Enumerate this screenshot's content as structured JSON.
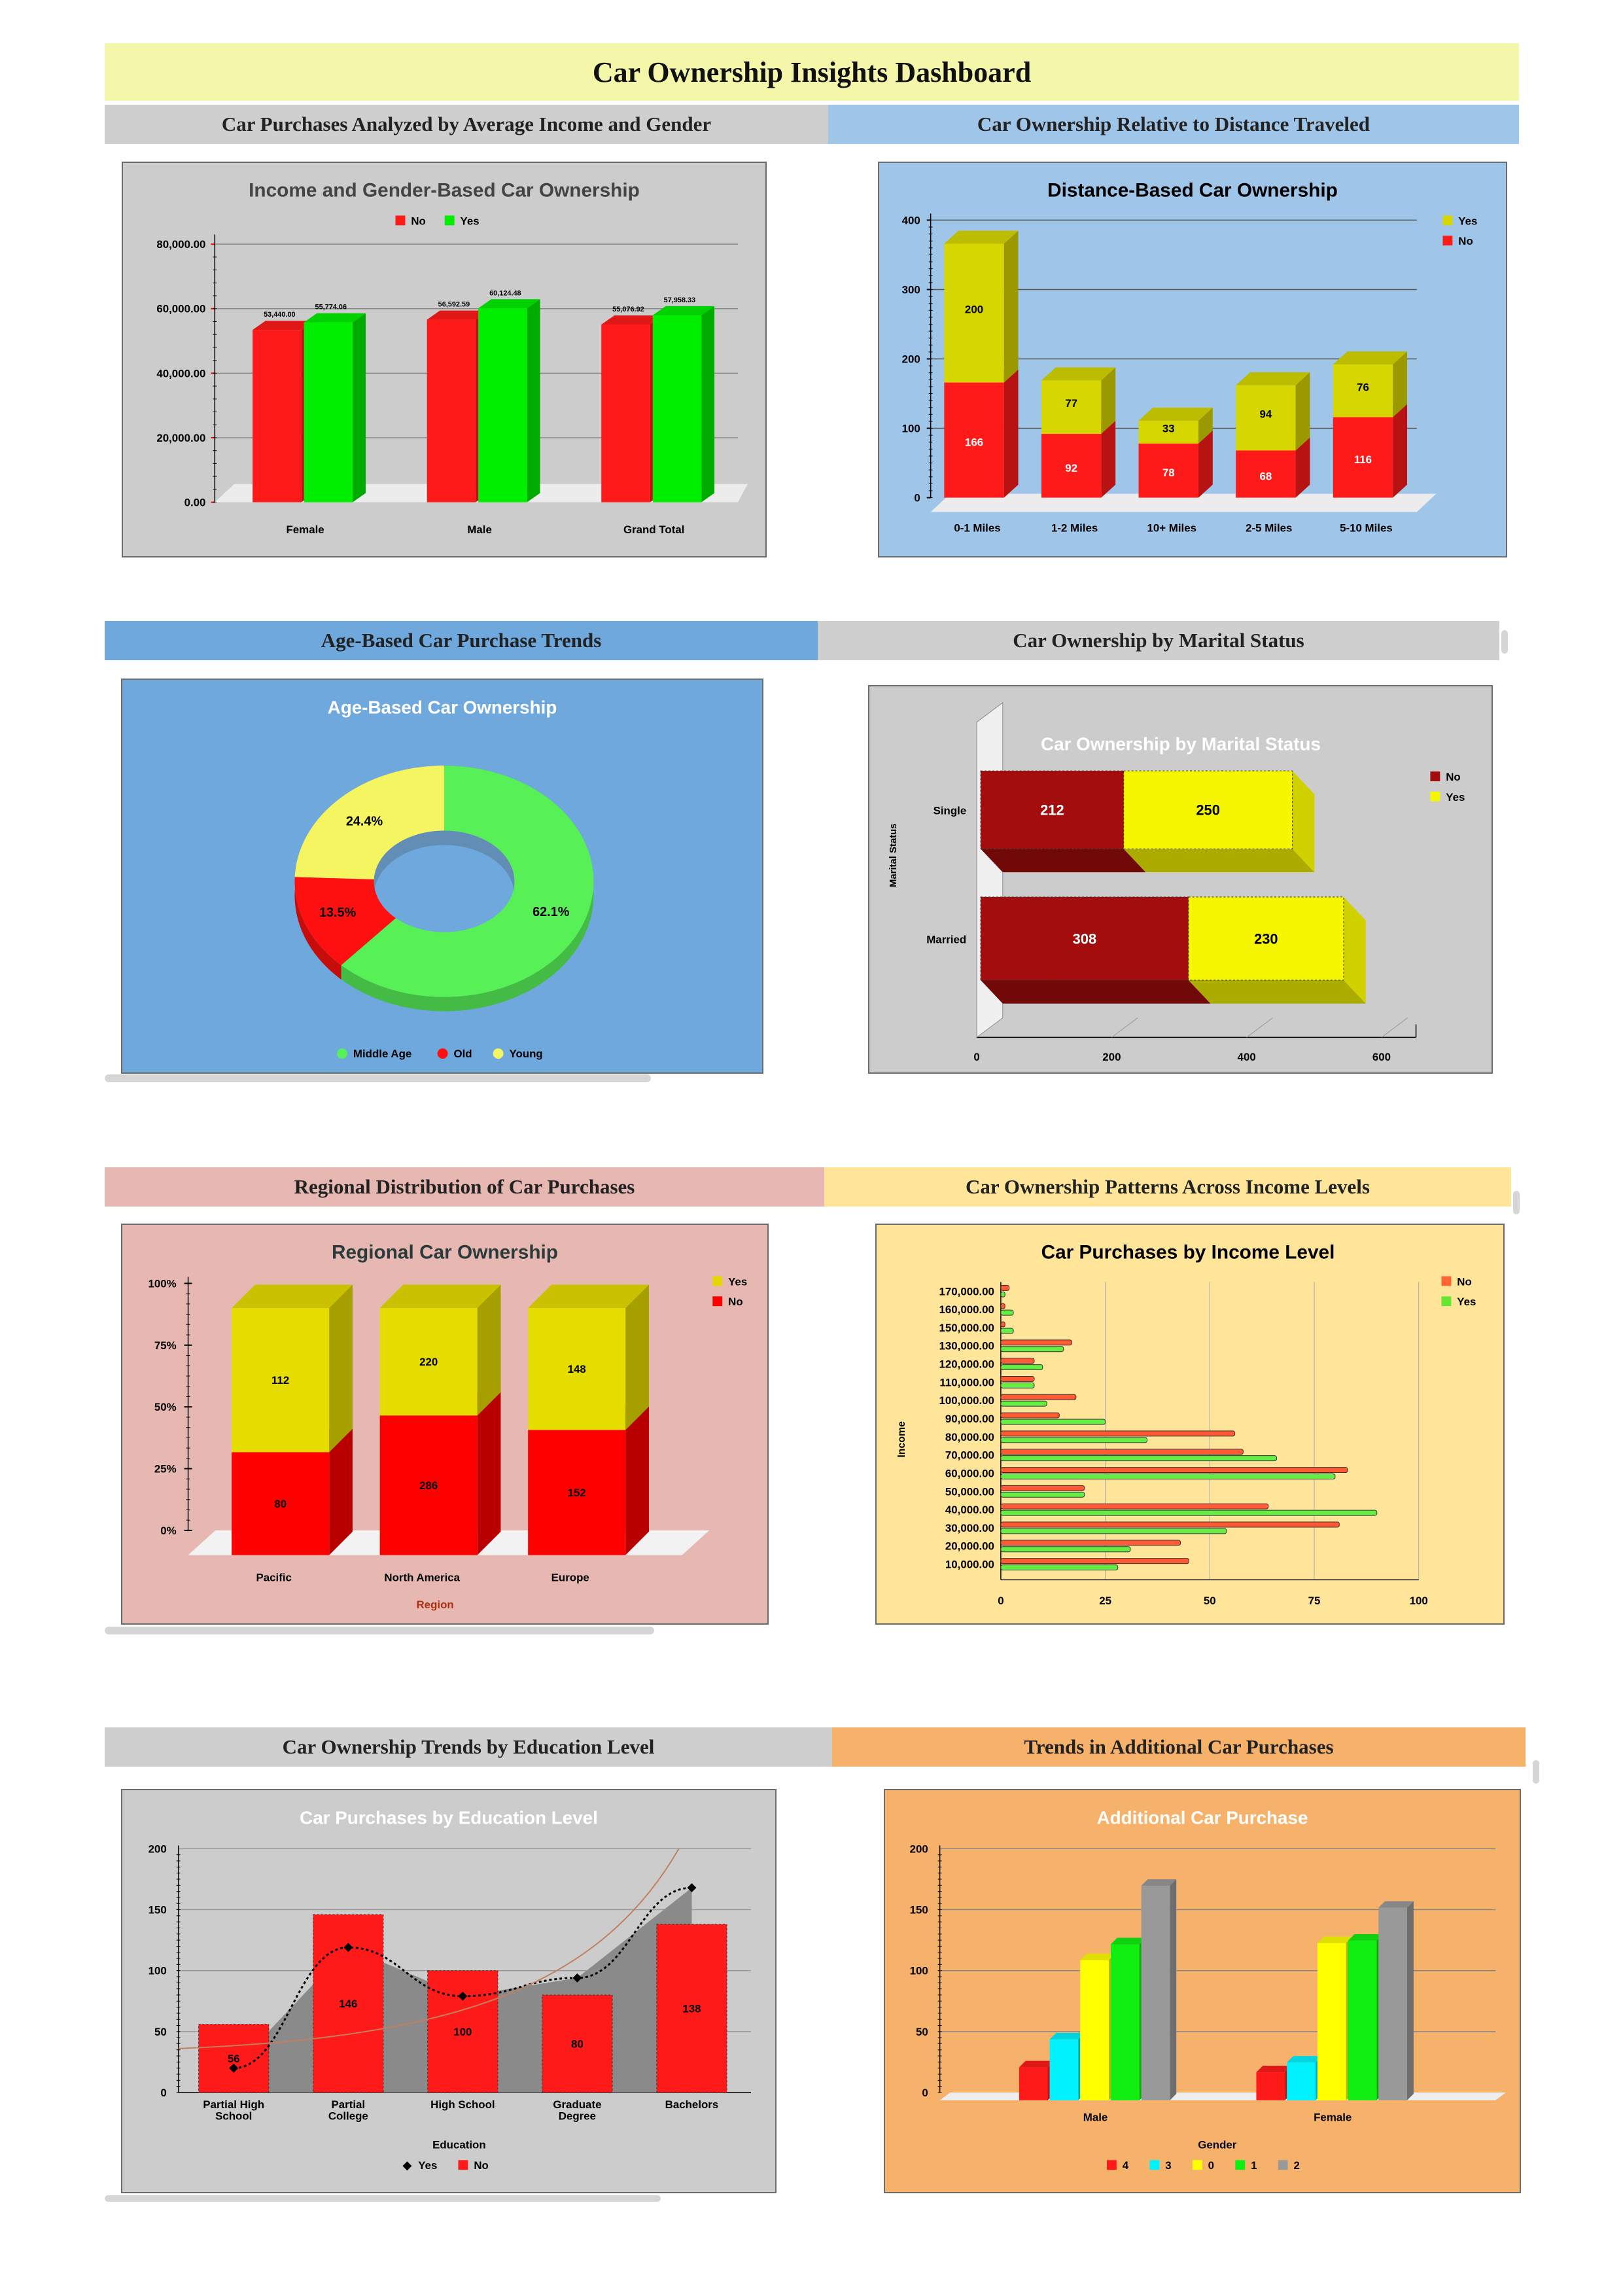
{
  "dashboard_title": "Car Ownership Insights Dashboard",
  "section_headers": {
    "income_gender": "Car Purchases Analyzed by Average Income and Gender",
    "distance": "Car Ownership Relative to Distance Traveled",
    "age": "Age-Based Car Purchase Trends",
    "marital": "Car Ownership by Marital Status",
    "region": "Regional Distribution of Car Purchases",
    "income_levels": "Car Ownership Patterns Across Income Levels",
    "education": "Car Ownership Trends by Education Level",
    "additional": "Trends in Additional Car Purchases"
  },
  "colors": {
    "no_red": "#ff1a1a",
    "yes_green": "#00ee00",
    "yes_yellow": "#d6d600",
    "bright_yellow": "#f6f600",
    "dark_red": "#a30d0d",
    "gray": "#999999",
    "cyan": "#00f2ff"
  },
  "chart_data": [
    {
      "id": "income_gender",
      "type": "bar",
      "title": "Income and Gender-Based Car Ownership",
      "categories": [
        "Female",
        "Male",
        "Grand Total"
      ],
      "series": [
        {
          "name": "No",
          "values": [
            53440.0,
            56592.59,
            55076.92
          ],
          "labels": [
            "53,440.00",
            "56,592.59",
            "55,076.92"
          ]
        },
        {
          "name": "Yes",
          "values": [
            55774.06,
            60124.48,
            57958.33
          ],
          "labels": [
            "55,774.06",
            "60,124.48",
            "57,958.33"
          ]
        }
      ],
      "ylim": [
        0,
        80000
      ],
      "yticks": [
        "0.00",
        "20,000.00",
        "40,000.00",
        "60,000.00",
        "80,000.00"
      ],
      "legend": "top"
    },
    {
      "id": "distance",
      "type": "bar",
      "stacked": true,
      "title": "Distance-Based Car Ownership",
      "categories": [
        "0-1 Miles",
        "1-2 Miles",
        "10+ Miles",
        "2-5 Miles",
        "5-10 Miles"
      ],
      "series": [
        {
          "name": "No",
          "values": [
            166,
            92,
            78,
            68,
            116
          ]
        },
        {
          "name": "Yes",
          "values": [
            200,
            77,
            33,
            94,
            76
          ]
        }
      ],
      "ylim": [
        0,
        400
      ],
      "yticks": [
        "0",
        "100",
        "200",
        "300",
        "400"
      ],
      "legend": "top-right",
      "legend_order": [
        "Yes",
        "No"
      ]
    },
    {
      "id": "age",
      "type": "pie",
      "donut": true,
      "title": "Age-Based Car Ownership",
      "series": [
        {
          "name": "Middle Age",
          "value": 62.1,
          "label": "62.1%"
        },
        {
          "name": "Old",
          "value": 13.5,
          "label": "13.5%"
        },
        {
          "name": "Young",
          "value": 24.4,
          "label": "24.4%"
        }
      ],
      "legend": "bottom"
    },
    {
      "id": "marital",
      "type": "bar",
      "horizontal": true,
      "stacked": true,
      "title": "Car Ownership by Marital Status",
      "categories": [
        "Single",
        "Married"
      ],
      "series": [
        {
          "name": "No",
          "values": [
            212,
            308
          ]
        },
        {
          "name": "Yes",
          "values": [
            250,
            230
          ]
        }
      ],
      "xlim": [
        0,
        600
      ],
      "xticks": [
        "0",
        "200",
        "400",
        "600"
      ],
      "ylabel": "Marital Status",
      "legend": "top-right"
    },
    {
      "id": "region",
      "type": "bar",
      "stacked": true,
      "percent": true,
      "title": "Regional Car Ownership",
      "categories": [
        "Pacific",
        "North America",
        "Europe"
      ],
      "series": [
        {
          "name": "No",
          "values": [
            80,
            286,
            152
          ]
        },
        {
          "name": "Yes",
          "values": [
            112,
            220,
            148
          ]
        }
      ],
      "yticks": [
        "0%",
        "25%",
        "50%",
        "75%",
        "100%"
      ],
      "xlabel": "Region",
      "legend": "top-right",
      "legend_order": [
        "Yes",
        "No"
      ]
    },
    {
      "id": "income_levels",
      "type": "bar",
      "horizontal": true,
      "title": "Car Purchases by Income Level",
      "categories": [
        "10,000.00",
        "20,000.00",
        "30,000.00",
        "40,000.00",
        "50,000.00",
        "60,000.00",
        "70,000.00",
        "80,000.00",
        "90,000.00",
        "100,000.00",
        "110,000.00",
        "120,000.00",
        "130,000.00",
        "150,000.00",
        "160,000.00",
        "170,000.00"
      ],
      "series": [
        {
          "name": "No",
          "values": [
            45,
            43,
            81,
            64,
            20,
            83,
            58,
            56,
            14,
            18,
            8,
            8,
            17,
            1,
            1,
            2
          ]
        },
        {
          "name": "Yes",
          "values": [
            28,
            31,
            54,
            90,
            20,
            80,
            66,
            35,
            25,
            11,
            8,
            10,
            15,
            3,
            3,
            1
          ]
        }
      ],
      "xlim": [
        0,
        100
      ],
      "xticks": [
        "0",
        "25",
        "50",
        "75",
        "100"
      ],
      "ylabel": "Income",
      "legend": "top-right"
    },
    {
      "id": "education",
      "type": "bar",
      "title": "Car Purchases by Education Level",
      "categories": [
        "Partial High School",
        "Partial College",
        "High School",
        "Graduate Degree",
        "Bachelors"
      ],
      "series": [
        {
          "name": "No",
          "values": [
            56,
            146,
            100,
            80,
            138
          ]
        },
        {
          "name": "Yes",
          "type": "line",
          "values": [
            20,
            119,
            79,
            94,
            168
          ]
        }
      ],
      "ylim": [
        0,
        200
      ],
      "yticks": [
        "0",
        "50",
        "100",
        "150",
        "200"
      ],
      "xlabel": "Education",
      "legend": "bottom"
    },
    {
      "id": "additional",
      "type": "bar",
      "title": "Additional Car Purchase",
      "categories": [
        "Male",
        "Female"
      ],
      "series": [
        {
          "name": "4",
          "values": [
            27,
            23
          ]
        },
        {
          "name": "3",
          "values": [
            50,
            31
          ]
        },
        {
          "name": "0",
          "values": [
            115,
            129
          ]
        },
        {
          "name": "1",
          "values": [
            128,
            131
          ]
        },
        {
          "name": "2",
          "values": [
            176,
            158
          ]
        }
      ],
      "ylim": [
        0,
        200
      ],
      "yticks": [
        "0",
        "50",
        "100",
        "150",
        "200"
      ],
      "xlabel": "Gender",
      "legend": "bottom"
    }
  ]
}
